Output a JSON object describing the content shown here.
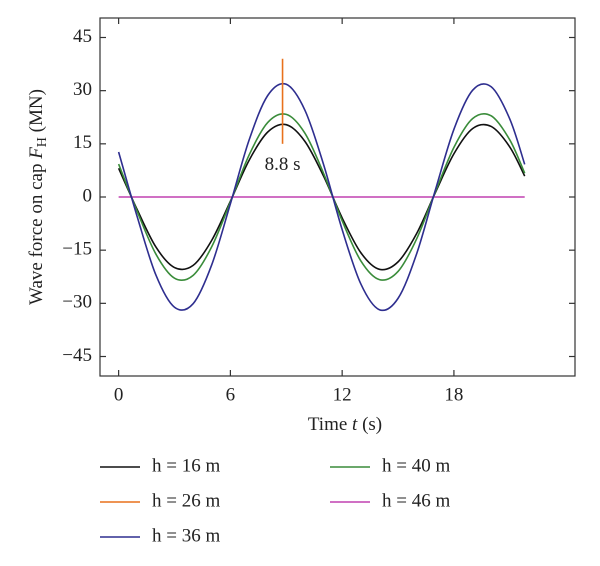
{
  "chart_data": {
    "type": "line",
    "xlabel": {
      "text": "Time",
      "symbol": "t",
      "unit": "(s)"
    },
    "ylabel": {
      "text": "Wave force on cap",
      "symbol": "F",
      "subscript": "H",
      "unit": "(MN)"
    },
    "annotation": "8.8 s",
    "xlim": [
      -1,
      24.5
    ],
    "ylim": [
      -50.5,
      50.5
    ],
    "xticks": [
      0,
      6,
      12,
      18
    ],
    "yticks": [
      45,
      30,
      15,
      0,
      {
        "value": -15,
        "label": "−15"
      },
      {
        "value": -30,
        "label": "−30"
      },
      {
        "value": -45,
        "label": "−45"
      }
    ],
    "series": [
      {
        "name": "h = 16 m",
        "color": "#111111",
        "x": [
          0,
          1,
          2,
          3,
          4,
          5,
          6,
          7,
          8,
          9,
          10,
          11,
          12,
          13,
          14,
          15,
          16,
          17,
          18,
          19,
          20,
          21,
          21.8
        ],
        "values": [
          8.1,
          -3.6,
          -14.1,
          -19.9,
          -19.3,
          -12.2,
          -1.2,
          10.3,
          18.3,
          20.4,
          15.7,
          5.9,
          -5.9,
          -15.7,
          -20.4,
          -18.3,
          -10.3,
          1.2,
          12.2,
          19.3,
          19.9,
          14.1,
          5.9
        ]
      },
      {
        "name": "h = 26 m",
        "color": "#e8711c",
        "x": [
          8.8,
          8.8
        ],
        "values": [
          15,
          39
        ]
      },
      {
        "name": "h = 36 m",
        "color": "#2e2e8f",
        "x": [
          0,
          1,
          2,
          3,
          4,
          5,
          6,
          7,
          8,
          9,
          10,
          11,
          12,
          13,
          14,
          15,
          16,
          17,
          18,
          19,
          20,
          21,
          21.8
        ],
        "values": [
          12.7,
          -5.6,
          -22.0,
          -31.1,
          -30.1,
          -19.1,
          -1.9,
          16.0,
          28.6,
          31.8,
          24.5,
          9.2,
          -9.2,
          -24.5,
          -31.8,
          -28.6,
          -16.0,
          1.9,
          19.1,
          30.1,
          31.1,
          22.0,
          9.2
        ]
      },
      {
        "name": "h = 40 m",
        "color": "#3a8c3a",
        "x": [
          0,
          1,
          2,
          3,
          4,
          5,
          6,
          7,
          8,
          9,
          10,
          11,
          12,
          13,
          14,
          15,
          16,
          17,
          18,
          19,
          20,
          21,
          21.8
        ],
        "values": [
          9.3,
          -4.1,
          -16.1,
          -22.9,
          -22.1,
          -14.0,
          -1.4,
          11.8,
          21.0,
          23.3,
          18.0,
          6.7,
          -6.7,
          -18.0,
          -23.3,
          -21.0,
          -11.8,
          1.4,
          14.0,
          22.1,
          22.9,
          16.1,
          6.7
        ]
      },
      {
        "name": "h = 46 m",
        "color": "#c040b0",
        "x": [
          0,
          21.8
        ],
        "values": [
          0,
          0
        ]
      }
    ]
  }
}
